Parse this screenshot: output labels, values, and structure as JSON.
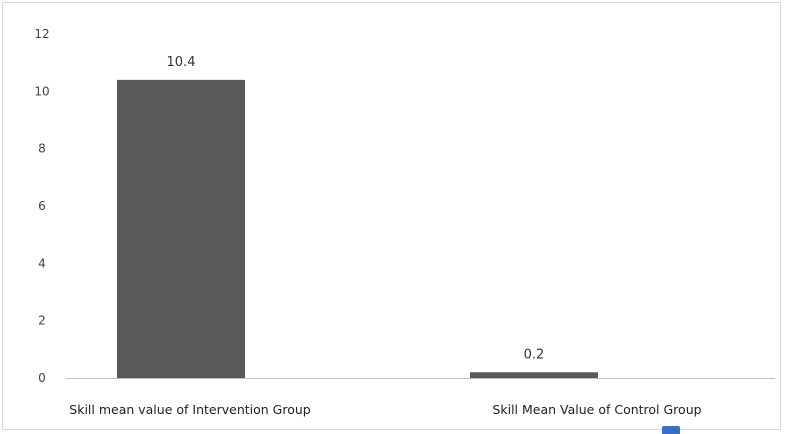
{
  "chart_data": {
    "type": "bar",
    "categories": [
      "Skill mean value of Intervention Group",
      "Skill Mean Value of Control Group"
    ],
    "values": [
      10.4,
      0.2
    ],
    "data_labels": [
      "10.4",
      "0.2"
    ],
    "title": "",
    "xlabel": "",
    "ylabel": "",
    "ylim": [
      0,
      12
    ],
    "yticks": [
      0,
      2,
      4,
      6,
      8,
      10,
      12
    ],
    "grid": false,
    "legend": "none",
    "bar_color": "#595959"
  }
}
